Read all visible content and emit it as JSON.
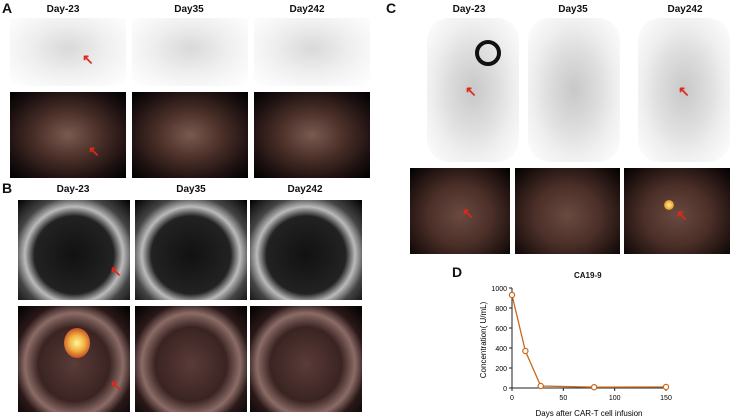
{
  "panels": {
    "A": {
      "letter": "A",
      "titles": [
        "Day-23",
        "Day35",
        "Day242"
      ]
    },
    "B": {
      "letter": "B",
      "titles": [
        "Day-23",
        "Day35",
        "Day242"
      ]
    },
    "C": {
      "letter": "C",
      "titles": [
        "Day-23",
        "Day35",
        "Day242"
      ]
    },
    "D": {
      "letter": "D"
    }
  },
  "colors": {
    "arrow": "#e1261c",
    "line": "#c8681e"
  },
  "chart_data": {
    "type": "line",
    "title": "CA19-9",
    "xlabel": "Days after CAR-T cell infusion",
    "ylabel": "Concentration( U/mL)",
    "x": [
      0,
      13,
      28,
      80,
      150
    ],
    "values": [
      930,
      370,
      20,
      8,
      10
    ],
    "xlim": [
      0,
      150
    ],
    "ylim": [
      0,
      1000
    ],
    "xticks": [
      "0",
      "50",
      "100",
      "150"
    ],
    "yticks": [
      "0",
      "200",
      "400",
      "600",
      "800",
      "1000"
    ],
    "xtick_values": [
      0,
      50,
      100,
      150
    ],
    "ytick_values": [
      0,
      200,
      400,
      600,
      800,
      1000
    ],
    "grid": false
  }
}
